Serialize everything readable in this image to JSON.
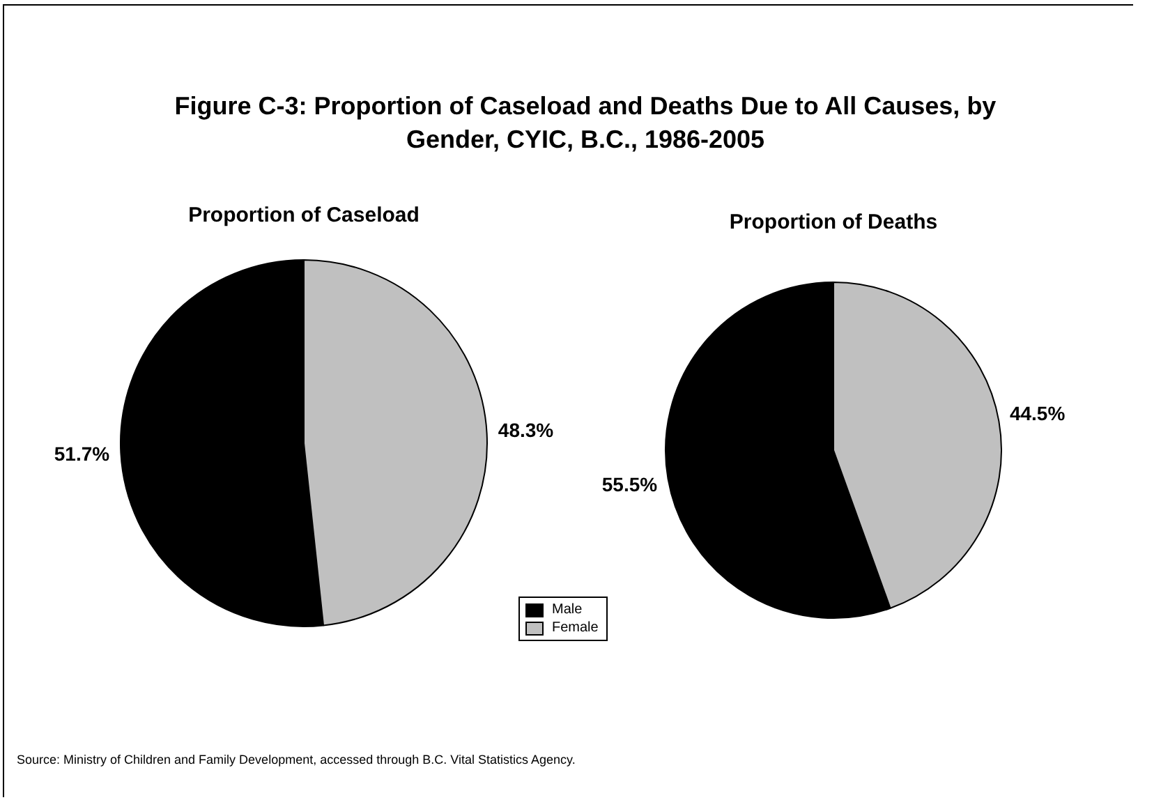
{
  "chart_data": {
    "type": "pie",
    "title": "Figure C-3:  Proportion of Caseload and Deaths Due to All Causes, by Gender, CYIC, B.C., 1986-2005",
    "categories": [
      "Male",
      "Female"
    ],
    "colors": [
      "#000000",
      "#c0c0c0"
    ],
    "legend": "bottom",
    "series": [
      {
        "name": "Proportion of Caseload",
        "values": [
          51.7,
          48.3
        ],
        "value_labels": [
          "51.7%",
          "48.3%"
        ]
      },
      {
        "name": "Proportion of Deaths",
        "values": [
          55.5,
          44.5
        ],
        "value_labels": [
          "55.5%",
          "44.5%"
        ]
      }
    ],
    "annotations": [
      "Source:  Ministry of Children and Family Development, accessed through B.C. Vital Statistics Agency."
    ]
  }
}
